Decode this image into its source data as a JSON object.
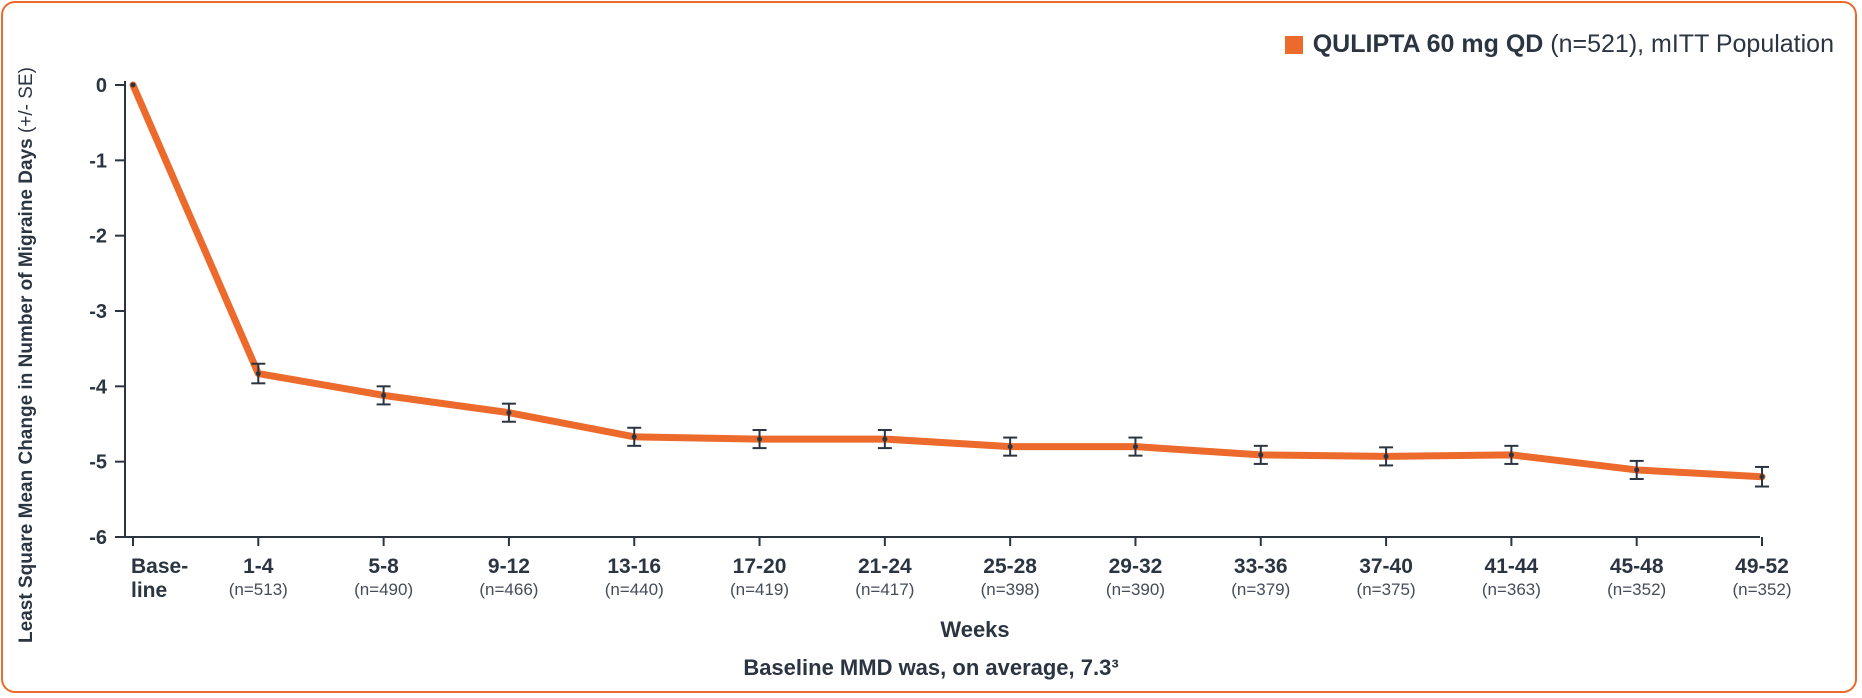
{
  "chart_data": {
    "type": "line",
    "title": "",
    "xlabel": "Weeks",
    "ylabel": "Least Square Mean Change in Number of Migraine Days",
    "ylabel_suffix": " (+/- SE)",
    "ylim": [
      -6,
      0
    ],
    "yticks": [
      0,
      -1,
      -2,
      -3,
      -4,
      -5,
      -6
    ],
    "categories": [
      "Base-line",
      "1-4",
      "5-8",
      "9-12",
      "13-16",
      "17-20",
      "21-24",
      "25-28",
      "29-32",
      "33-36",
      "37-40",
      "41-44",
      "45-48",
      "49-52"
    ],
    "category_line1": [
      "Base-",
      "1-4",
      "5-8",
      "9-12",
      "13-16",
      "17-20",
      "21-24",
      "25-28",
      "29-32",
      "33-36",
      "37-40",
      "41-44",
      "45-48",
      "49-52"
    ],
    "category_line2": [
      "line",
      "(n=513)",
      "(n=490)",
      "(n=466)",
      "(n=440)",
      "(n=419)",
      "(n=417)",
      "(n=398)",
      "(n=390)",
      "(n=379)",
      "(n=375)",
      "(n=363)",
      "(n=352)",
      "(n=352)"
    ],
    "series": [
      {
        "name": "QULIPTA 60 mg QD (n=521), mITT Population",
        "color": "#ec6a2c",
        "values": [
          0,
          -3.83,
          -4.12,
          -4.35,
          -4.67,
          -4.7,
          -4.7,
          -4.8,
          -4.8,
          -4.91,
          -4.93,
          -4.91,
          -5.11,
          -5.2
        ],
        "se": [
          0,
          0.13,
          0.12,
          0.12,
          0.12,
          0.12,
          0.12,
          0.12,
          0.12,
          0.12,
          0.12,
          0.12,
          0.12,
          0.13
        ]
      }
    ],
    "legend": {
      "bold": "QULIPTA 60 mg QD",
      "rest": " (n=521), mITT Population",
      "position": "top-right"
    },
    "footnote": "Baseline MMD was, on average, 7.3³"
  },
  "colors": {
    "accent": "#ec6a2c",
    "text": "#2b3542",
    "errorbar": "#2b3542"
  }
}
